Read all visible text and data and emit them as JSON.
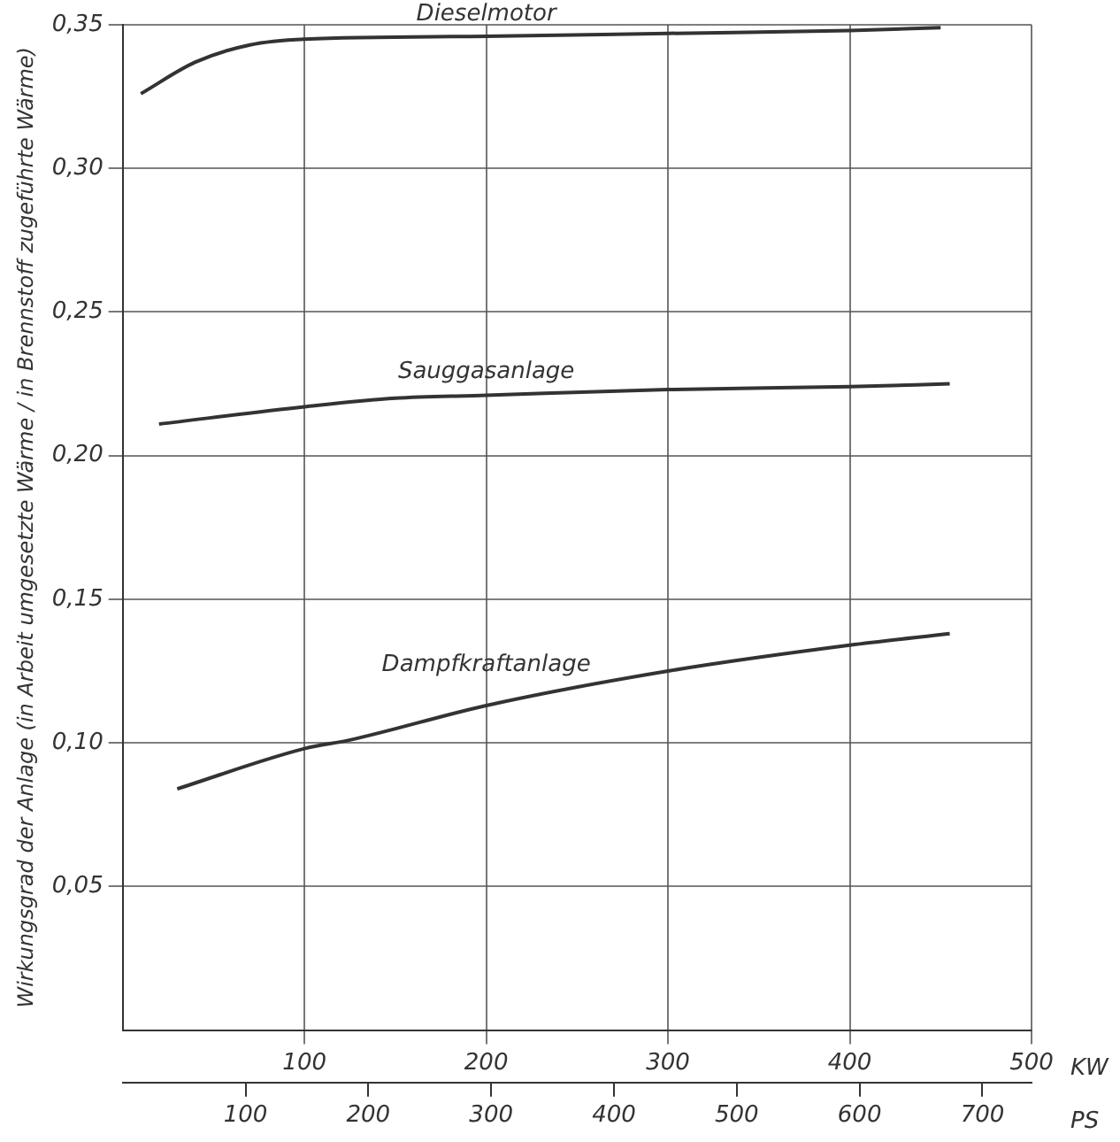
{
  "chart_data": {
    "type": "line",
    "ylabel": "Wirkungsgrad der Anlage (in Arbeit umgesetzte Wärme / in Brennstoff zugeführte Wärme)",
    "xlabel": "KW",
    "x2label": "PS",
    "xlim": [
      0,
      500
    ],
    "xticks": [
      100,
      200,
      300,
      400,
      500
    ],
    "x2lim": [
      0,
      740
    ],
    "x2ticks": [
      100,
      200,
      300,
      400,
      500,
      600,
      700
    ],
    "ylim": [
      0,
      0.35
    ],
    "yticks": [
      {
        "value": 0.05,
        "label": "0,05"
      },
      {
        "value": 0.1,
        "label": "0,10"
      },
      {
        "value": 0.15,
        "label": "0,15"
      },
      {
        "value": 0.2,
        "label": "0,20"
      },
      {
        "value": 0.25,
        "label": "0,25"
      },
      {
        "value": 0.3,
        "label": "0,30"
      },
      {
        "value": 0.35,
        "label": "0,35"
      }
    ],
    "grid": true,
    "legend": false,
    "marker": "none",
    "line_style": "solid",
    "series": [
      {
        "name": "Dieselmotor",
        "color": "#333333",
        "x": [
          10,
          40,
          70,
          100,
          200,
          300,
          400,
          450
        ],
        "values": [
          0.326,
          0.337,
          0.343,
          0.345,
          0.346,
          0.347,
          0.348,
          0.349
        ]
      },
      {
        "name": "Sauggasanlage",
        "color": "#333333",
        "x": [
          20,
          100,
          150,
          200,
          300,
          400,
          455
        ],
        "values": [
          0.211,
          0.217,
          0.22,
          0.221,
          0.223,
          0.224,
          0.225
        ]
      },
      {
        "name": "Dampfkraftanlage",
        "color": "#333333",
        "x": [
          30,
          100,
          125,
          200,
          300,
          400,
          455
        ],
        "values": [
          0.084,
          0.098,
          0.101,
          0.113,
          0.125,
          0.134,
          0.138
        ]
      }
    ]
  }
}
